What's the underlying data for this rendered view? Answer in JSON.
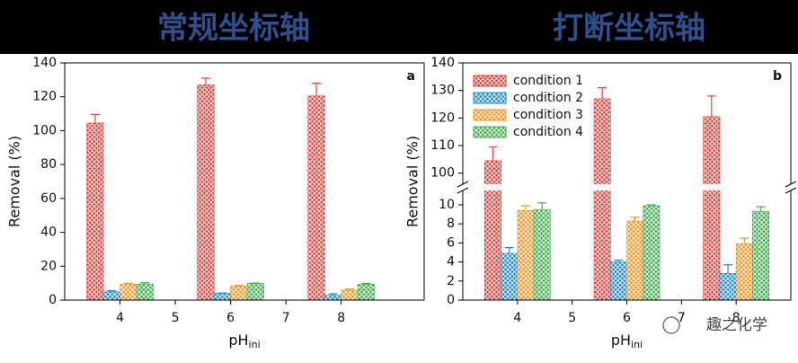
{
  "header": {
    "left_title": "常规坐标轴",
    "right_title": "打断坐标轴"
  },
  "watermark": "趣之化学",
  "chart_data": [
    {
      "type": "bar",
      "panel": "a",
      "ylabel": "Removal (%)",
      "xlabel": "pH",
      "xlabel_sub": "ini",
      "x": [
        4,
        6,
        8
      ],
      "xlim": [
        3,
        9.5
      ],
      "xticks": [
        4,
        5,
        6,
        7,
        8
      ],
      "ylim": [
        0,
        140
      ],
      "yticks": [
        0,
        20,
        40,
        60,
        80,
        100,
        120,
        140
      ],
      "series": [
        {
          "name": "condition 1",
          "color": "#e8413a",
          "values": [
            104.5,
            127,
            120.5
          ],
          "errors": [
            5,
            4,
            7.5
          ]
        },
        {
          "name": "condition 2",
          "color": "#1f88d8",
          "values": [
            4.9,
            4,
            2.8
          ],
          "errors": [
            0.6,
            0.2,
            0.9
          ]
        },
        {
          "name": "condition 3",
          "color": "#f7941d",
          "values": [
            9.4,
            8.3,
            5.9
          ],
          "errors": [
            0.5,
            0.4,
            0.6
          ]
        },
        {
          "name": "condition 4",
          "color": "#3dae49",
          "values": [
            9.5,
            9.9,
            9.3
          ],
          "errors": [
            0.7,
            0.1,
            0.5
          ]
        }
      ]
    },
    {
      "type": "broken_bar",
      "panel": "b",
      "ylabel": "Removal (%)",
      "xlabel": "pH",
      "xlabel_sub": "ini",
      "x": [
        4,
        6,
        8
      ],
      "xlim": [
        3,
        9
      ],
      "xticks": [
        4,
        5,
        6,
        7,
        8
      ],
      "ylim_lower": [
        0,
        11.5
      ],
      "yticks_lower": [
        0,
        2,
        4,
        6,
        8,
        10
      ],
      "ylim_upper": [
        96,
        140
      ],
      "yticks_upper": [
        100,
        110,
        120,
        130,
        140
      ],
      "legend": "upper left",
      "series": [
        {
          "name": "condition 1",
          "color": "#e8413a",
          "values": [
            104.5,
            127,
            120.5
          ],
          "errors": [
            5,
            4,
            7.5
          ]
        },
        {
          "name": "condition 2",
          "color": "#1f88d8",
          "values": [
            4.9,
            4,
            2.8
          ],
          "errors": [
            0.6,
            0.2,
            0.9
          ]
        },
        {
          "name": "condition 3",
          "color": "#f7941d",
          "values": [
            9.4,
            8.3,
            5.9
          ],
          "errors": [
            0.5,
            0.4,
            0.6
          ]
        },
        {
          "name": "condition 4",
          "color": "#3dae49",
          "values": [
            9.5,
            9.9,
            9.3
          ],
          "errors": [
            0.7,
            0.1,
            0.5
          ]
        }
      ]
    }
  ]
}
